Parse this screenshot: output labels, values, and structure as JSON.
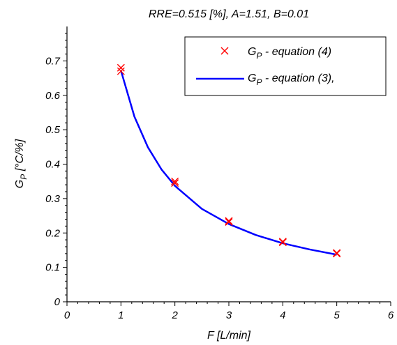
{
  "chart_data": {
    "type": "line",
    "title": "RRE=0.515 [%], A=1.51, B=0.01",
    "xlabel": "F [L/min]",
    "ylabel": {
      "base": "G",
      "sub": "P",
      "rest": " [°C/%]"
    },
    "xlim": [
      0,
      6
    ],
    "ylim": [
      0,
      0.8
    ],
    "xticks": [
      0,
      1,
      2,
      3,
      4,
      5,
      6
    ],
    "yticks": [
      0,
      0.1,
      0.2,
      0.3,
      0.4,
      0.5,
      0.6,
      0.7
    ],
    "xtick_labels": [
      "0",
      "1",
      "2",
      "3",
      "4",
      "5",
      "6"
    ],
    "ytick_labels": [
      "0",
      "0.1",
      "0.2",
      "0.3",
      "0.4",
      "0.5",
      "0.6",
      "0.7"
    ],
    "grid": false,
    "legend_position": "top-right",
    "series": [
      {
        "name": {
          "base": "G",
          "sub": "P",
          "rest": " - equation (4)"
        },
        "kind": "scatter",
        "marker": "x",
        "color": "#ff0000",
        "points": [
          {
            "x": 1,
            "y": 0.68
          },
          {
            "x": 1,
            "y": 0.67
          },
          {
            "x": 2,
            "y": 0.35
          },
          {
            "x": 2,
            "y": 0.345
          },
          {
            "x": 3,
            "y": 0.235
          },
          {
            "x": 3,
            "y": 0.232
          },
          {
            "x": 4,
            "y": 0.175
          },
          {
            "x": 4,
            "y": 0.173
          },
          {
            "x": 5,
            "y": 0.142
          },
          {
            "x": 5,
            "y": 0.14
          }
        ]
      },
      {
        "name": {
          "base": "G",
          "sub": "P",
          "rest": " - equation (3),"
        },
        "kind": "line",
        "color": "#0000ff",
        "x": [
          1,
          1.25,
          1.5,
          1.75,
          2,
          2.5,
          3,
          3.5,
          4,
          4.5,
          5
        ],
        "y": [
          0.672,
          0.538,
          0.449,
          0.385,
          0.337,
          0.27,
          0.226,
          0.194,
          0.17,
          0.152,
          0.137
        ]
      }
    ]
  }
}
